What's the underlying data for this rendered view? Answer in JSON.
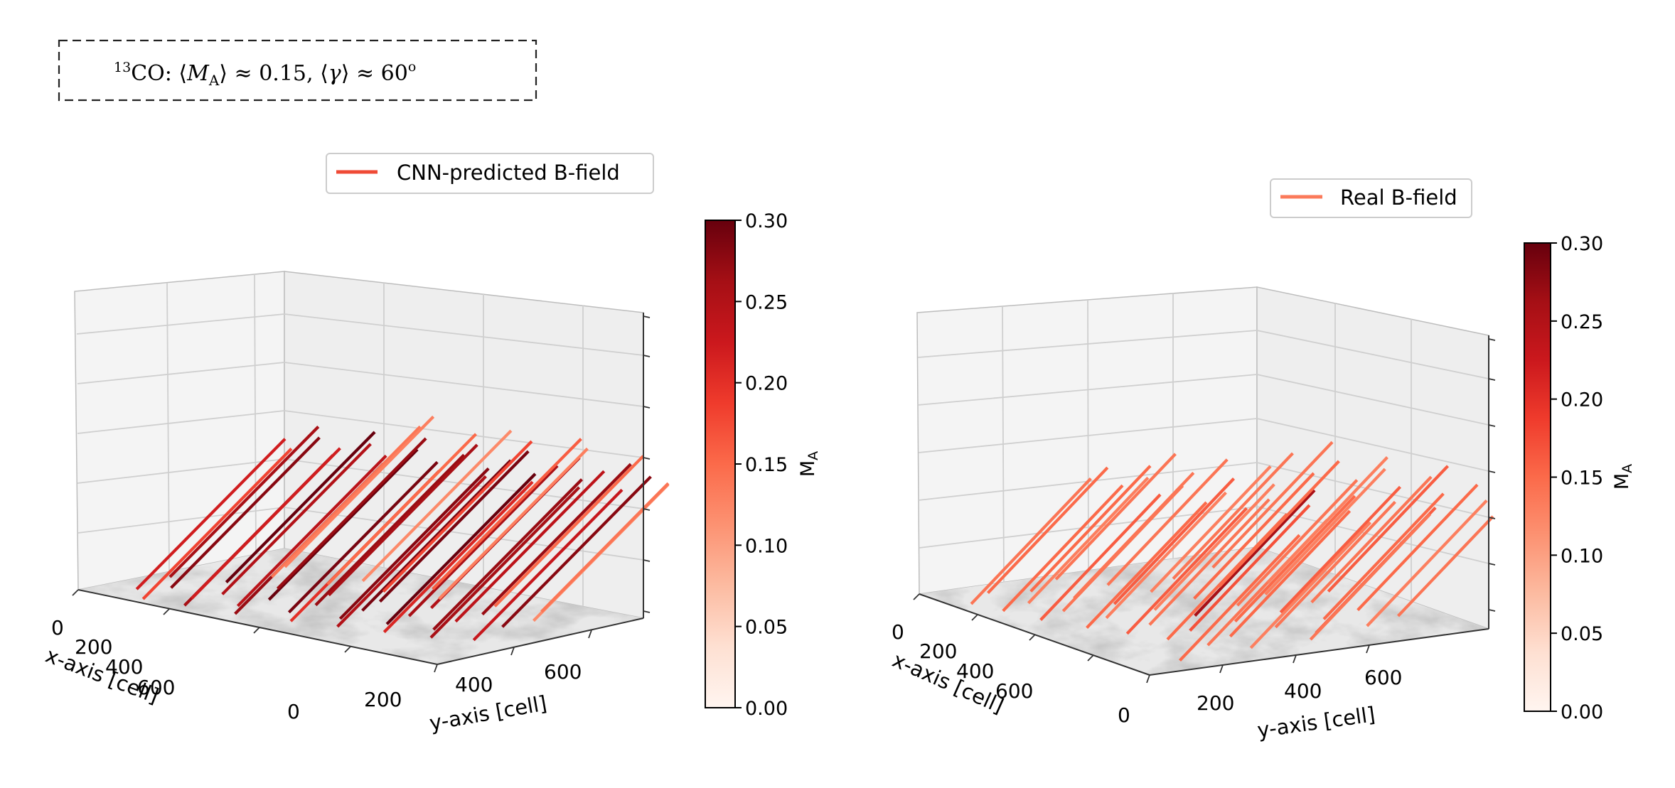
{
  "header": {
    "iso": "13",
    "tracer": "CO",
    "ma_symbol": "M",
    "ma_sub": "A",
    "approx": "≈",
    "ma_value": "0.15",
    "gamma_symbol": "γ",
    "gamma_value": "60",
    "gamma_unit": "o"
  },
  "colors": {
    "cmap": [
      "#fff5f0",
      "#fee0d2",
      "#fcbba1",
      "#fc9272",
      "#fb6a4a",
      "#ef3b2c",
      "#cb181d",
      "#a50f15",
      "#67000d"
    ],
    "pane": "#f2f2f2",
    "grid": "#cfcfcf"
  },
  "chart_data": [
    {
      "type": "3d-vector-field",
      "title": "",
      "legend": "CNN-predicted B-field",
      "legend_color": "#ef4a35",
      "legend_position": "top",
      "xlabel": "x-axis [cell]",
      "ylabel": "y-axis [cell]",
      "xlim": [
        0,
        792
      ],
      "ylim": [
        0,
        792
      ],
      "xticks": [
        "0",
        "200",
        "400",
        "600"
      ],
      "yticks": [
        "0",
        "200",
        "400",
        "600"
      ],
      "colorbar_label": "M_A",
      "colorbar_range": [
        0,
        0.3
      ],
      "colorbar_ticks": [
        "0.00",
        "0.05",
        "0.10",
        "0.15",
        "0.20",
        "0.25",
        "0.30"
      ],
      "vector_direction": {
        "dx": 270,
        "dy": 100,
        "dz": 170
      },
      "vectors": [
        {
          "x": 120,
          "y": 40,
          "ma": 0.18
        },
        {
          "x": 200,
          "y": 60,
          "ma": 0.26
        },
        {
          "x": 170,
          "y": 140,
          "ma": 0.22
        },
        {
          "x": 300,
          "y": 80,
          "ma": 0.27
        },
        {
          "x": 260,
          "y": 160,
          "ma": 0.24
        },
        {
          "x": 400,
          "y": 120,
          "ma": 0.2
        },
        {
          "x": 350,
          "y": 200,
          "ma": 0.29
        },
        {
          "x": 480,
          "y": 160,
          "ma": 0.25
        },
        {
          "x": 440,
          "y": 240,
          "ma": 0.28
        },
        {
          "x": 560,
          "y": 200,
          "ma": 0.21
        },
        {
          "x": 520,
          "y": 280,
          "ma": 0.3
        },
        {
          "x": 640,
          "y": 240,
          "ma": 0.26
        },
        {
          "x": 600,
          "y": 320,
          "ma": 0.27
        },
        {
          "x": 700,
          "y": 300,
          "ma": 0.23
        },
        {
          "x": 90,
          "y": 200,
          "ma": 0.28
        },
        {
          "x": 180,
          "y": 240,
          "ma": 0.25
        },
        {
          "x": 260,
          "y": 280,
          "ma": 0.3
        },
        {
          "x": 340,
          "y": 320,
          "ma": 0.27
        },
        {
          "x": 420,
          "y": 360,
          "ma": 0.29
        },
        {
          "x": 500,
          "y": 400,
          "ma": 0.26
        },
        {
          "x": 580,
          "y": 440,
          "ma": 0.24
        },
        {
          "x": 660,
          "y": 480,
          "ma": 0.28
        },
        {
          "x": 120,
          "y": 360,
          "ma": 0.3
        },
        {
          "x": 210,
          "y": 400,
          "ma": 0.27
        },
        {
          "x": 300,
          "y": 440,
          "ma": 0.26
        },
        {
          "x": 390,
          "y": 480,
          "ma": 0.29
        },
        {
          "x": 480,
          "y": 520,
          "ma": 0.25
        },
        {
          "x": 570,
          "y": 560,
          "ma": 0.27
        },
        {
          "x": 660,
          "y": 600,
          "ma": 0.12
        },
        {
          "x": 140,
          "y": 500,
          "ma": 0.14
        },
        {
          "x": 240,
          "y": 540,
          "ma": 0.15
        },
        {
          "x": 340,
          "y": 580,
          "ma": 0.18
        },
        {
          "x": 440,
          "y": 620,
          "ma": 0.13
        },
        {
          "x": 540,
          "y": 660,
          "ma": 0.15
        },
        {
          "x": 620,
          "y": 700,
          "ma": 0.14
        },
        {
          "x": 260,
          "y": 640,
          "ma": 0.12
        },
        {
          "x": 380,
          "y": 700,
          "ma": 0.16
        },
        {
          "x": 100,
          "y": 620,
          "ma": 0.13
        },
        {
          "x": 60,
          "y": 120,
          "ma": 0.22
        },
        {
          "x": 30,
          "y": 300,
          "ma": 0.26
        }
      ]
    },
    {
      "type": "3d-vector-field",
      "title": "",
      "legend": "Real B-field",
      "legend_color": "#fb7a5a",
      "legend_position": "top-right",
      "xlabel": "x-axis [cell]",
      "ylabel": "y-axis [cell]",
      "xlim": [
        0,
        792
      ],
      "ylim": [
        0,
        792
      ],
      "xticks": [
        "0",
        "200",
        "400",
        "600"
      ],
      "yticks": [
        "0",
        "200",
        "400",
        "600"
      ],
      "colorbar_label": "M_A",
      "colorbar_range": [
        0,
        0.3
      ],
      "colorbar_ticks": [
        "0.00",
        "0.05",
        "0.10",
        "0.15",
        "0.20",
        "0.25",
        "0.30"
      ],
      "vector_direction": {
        "dx": 250,
        "dy": 110,
        "dz": 150
      },
      "vectors": [
        {
          "x": 120,
          "y": 40,
          "ma": 0.14
        },
        {
          "x": 200,
          "y": 60,
          "ma": 0.15
        },
        {
          "x": 170,
          "y": 140,
          "ma": 0.13
        },
        {
          "x": 300,
          "y": 80,
          "ma": 0.16
        },
        {
          "x": 260,
          "y": 160,
          "ma": 0.14
        },
        {
          "x": 400,
          "y": 120,
          "ma": 0.15
        },
        {
          "x": 350,
          "y": 200,
          "ma": 0.13
        },
        {
          "x": 480,
          "y": 160,
          "ma": 0.16
        },
        {
          "x": 440,
          "y": 240,
          "ma": 0.14
        },
        {
          "x": 560,
          "y": 200,
          "ma": 0.15
        },
        {
          "x": 520,
          "y": 280,
          "ma": 0.17
        },
        {
          "x": 640,
          "y": 240,
          "ma": 0.14
        },
        {
          "x": 600,
          "y": 320,
          "ma": 0.15
        },
        {
          "x": 700,
          "y": 300,
          "ma": 0.13
        },
        {
          "x": 90,
          "y": 200,
          "ma": 0.15
        },
        {
          "x": 180,
          "y": 240,
          "ma": 0.14
        },
        {
          "x": 260,
          "y": 280,
          "ma": 0.16
        },
        {
          "x": 340,
          "y": 320,
          "ma": 0.13
        },
        {
          "x": 420,
          "y": 360,
          "ma": 0.26
        },
        {
          "x": 500,
          "y": 400,
          "ma": 0.15
        },
        {
          "x": 580,
          "y": 440,
          "ma": 0.14
        },
        {
          "x": 660,
          "y": 480,
          "ma": 0.16
        },
        {
          "x": 120,
          "y": 360,
          "ma": 0.14
        },
        {
          "x": 210,
          "y": 400,
          "ma": 0.13
        },
        {
          "x": 300,
          "y": 440,
          "ma": 0.15
        },
        {
          "x": 390,
          "y": 480,
          "ma": 0.14
        },
        {
          "x": 480,
          "y": 520,
          "ma": 0.16
        },
        {
          "x": 570,
          "y": 560,
          "ma": 0.15
        },
        {
          "x": 660,
          "y": 600,
          "ma": 0.13
        },
        {
          "x": 140,
          "y": 500,
          "ma": 0.14
        },
        {
          "x": 240,
          "y": 540,
          "ma": 0.15
        },
        {
          "x": 340,
          "y": 580,
          "ma": 0.13
        },
        {
          "x": 440,
          "y": 620,
          "ma": 0.14
        },
        {
          "x": 540,
          "y": 660,
          "ma": 0.15
        },
        {
          "x": 620,
          "y": 700,
          "ma": 0.14
        },
        {
          "x": 260,
          "y": 640,
          "ma": 0.13
        },
        {
          "x": 380,
          "y": 700,
          "ma": 0.16
        },
        {
          "x": 100,
          "y": 620,
          "ma": 0.14
        },
        {
          "x": 60,
          "y": 120,
          "ma": 0.15
        },
        {
          "x": 30,
          "y": 300,
          "ma": 0.14
        },
        {
          "x": 720,
          "y": 120,
          "ma": 0.15
        },
        {
          "x": 700,
          "y": 440,
          "ma": 0.14
        }
      ]
    }
  ]
}
